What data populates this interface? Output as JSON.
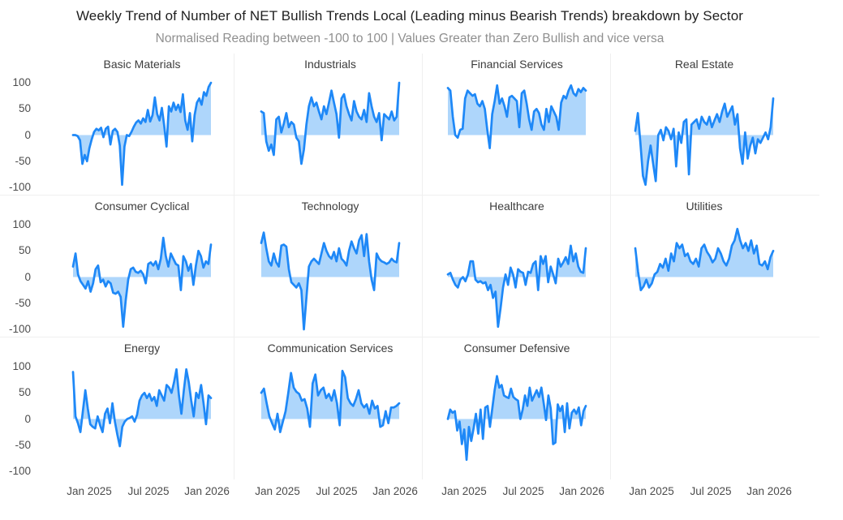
{
  "header": {
    "title": "Weekly Trend of Number of NET Bullish Trends Local (Leading minus Bearish Trends) breakdown by Sector",
    "subtitle": "Normalised Reading between -100 to 100 | Values Greater than Zero Bullish and vice versa"
  },
  "chart_data": {
    "type": "area",
    "layout_hint": "facet grid 4 columns x 3 rows, shared axes, fill to zero",
    "x_ticks": [
      "Jan 2025",
      "Jul 2025",
      "Jan 2026"
    ],
    "y_ticks": [
      100,
      50,
      0,
      -50,
      -100
    ],
    "ylim": [
      -100,
      100
    ],
    "line_color": "#1e88f7",
    "fill_color": "#aed6fb",
    "series": [
      {
        "name": "Basic Materials",
        "values": [
          0,
          0,
          -2,
          -10,
          -55,
          -38,
          -50,
          -25,
          -8,
          6,
          12,
          9,
          14,
          -4,
          12,
          16,
          -18,
          8,
          12,
          6,
          -20,
          -95,
          -22,
          0,
          -2,
          6,
          16,
          24,
          28,
          22,
          32,
          25,
          48,
          26,
          38,
          72,
          40,
          28,
          52,
          18,
          -22,
          55,
          45,
          62,
          48,
          58,
          44,
          78,
          28,
          10,
          42,
          -12,
          38,
          62,
          70,
          58,
          82,
          75,
          92,
          100
        ]
      },
      {
        "name": "Industrials",
        "values": [
          45,
          42,
          -12,
          -30,
          -18,
          -38,
          30,
          35,
          5,
          22,
          42,
          15,
          25,
          20,
          -5,
          -12,
          -55,
          -28,
          20,
          55,
          72,
          55,
          62,
          45,
          30,
          55,
          40,
          62,
          85,
          62,
          40,
          -5,
          70,
          78,
          55,
          40,
          28,
          65,
          45,
          35,
          30,
          48,
          25,
          80,
          55,
          35,
          25,
          42,
          -10,
          40,
          35,
          30,
          45,
          28,
          35,
          100
        ]
      },
      {
        "name": "Financial Services",
        "values": [
          90,
          85,
          35,
          0,
          -5,
          10,
          12,
          70,
          85,
          80,
          75,
          78,
          60,
          55,
          65,
          50,
          10,
          -25,
          40,
          65,
          95,
          60,
          70,
          55,
          35,
          72,
          75,
          70,
          65,
          15,
          80,
          85,
          60,
          30,
          10,
          45,
          50,
          42,
          20,
          10,
          50,
          25,
          55,
          45,
          35,
          10,
          62,
          75,
          70,
          85,
          95,
          80,
          75,
          88,
          82,
          90,
          85
        ]
      },
      {
        "name": "Real Estate",
        "values": [
          8,
          42,
          -15,
          -78,
          -95,
          -50,
          -20,
          -55,
          -88,
          0,
          10,
          -10,
          15,
          8,
          -8,
          12,
          -60,
          5,
          -15,
          25,
          30,
          -75,
          20,
          25,
          30,
          12,
          35,
          25,
          20,
          35,
          15,
          28,
          40,
          25,
          45,
          60,
          35,
          45,
          55,
          20,
          40,
          -25,
          -55,
          5,
          -45,
          -20,
          -5,
          -35,
          -8,
          -15,
          -5,
          5,
          -8,
          15,
          70
        ]
      },
      {
        "name": "Consumer Cyclical",
        "values": [
          20,
          45,
          5,
          -8,
          -15,
          -22,
          -8,
          -28,
          -12,
          15,
          22,
          -10,
          -5,
          -18,
          -8,
          -12,
          -30,
          -32,
          -28,
          -38,
          -95,
          -45,
          -5,
          15,
          18,
          10,
          8,
          12,
          5,
          -12,
          25,
          28,
          22,
          30,
          15,
          35,
          75,
          40,
          20,
          45,
          35,
          25,
          22,
          -25,
          40,
          30,
          12,
          25,
          -15,
          22,
          50,
          40,
          18,
          30,
          25,
          62
        ]
      },
      {
        "name": "Technology",
        "values": [
          65,
          85,
          55,
          30,
          22,
          45,
          28,
          20,
          60,
          62,
          58,
          15,
          -10,
          -15,
          -20,
          -12,
          -25,
          -100,
          -40,
          20,
          30,
          35,
          30,
          25,
          45,
          65,
          50,
          40,
          35,
          48,
          30,
          55,
          35,
          30,
          22,
          50,
          68,
          55,
          45,
          70,
          80,
          40,
          82,
          30,
          -5,
          -25,
          45,
          35,
          30,
          28,
          25,
          28,
          35,
          30,
          28,
          65
        ]
      },
      {
        "name": "Healthcare",
        "values": [
          5,
          8,
          -5,
          -15,
          -20,
          -5,
          0,
          -8,
          5,
          30,
          30,
          -5,
          -10,
          -8,
          -12,
          -10,
          -25,
          -15,
          -40,
          -28,
          -95,
          -60,
          -20,
          5,
          -15,
          18,
          5,
          -20,
          15,
          10,
          8,
          -15,
          10,
          8,
          25,
          30,
          -25,
          40,
          25,
          40,
          -10,
          20,
          5,
          -12,
          35,
          20,
          28,
          38,
          25,
          60,
          30,
          45,
          20,
          10,
          8,
          55
        ]
      },
      {
        "name": "Utilities",
        "values": [
          55,
          10,
          -25,
          -18,
          -5,
          -20,
          -12,
          5,
          10,
          25,
          18,
          35,
          12,
          45,
          30,
          65,
          55,
          62,
          40,
          45,
          30,
          25,
          35,
          20,
          55,
          62,
          48,
          40,
          28,
          35,
          55,
          45,
          30,
          22,
          35,
          60,
          70,
          92,
          70,
          55,
          65,
          50,
          70,
          45,
          60,
          25,
          22,
          30,
          15,
          38,
          50
        ]
      },
      {
        "name": "Energy",
        "values": [
          90,
          5,
          -8,
          -25,
          15,
          55,
          20,
          -10,
          -15,
          -18,
          5,
          -12,
          -25,
          10,
          20,
          -8,
          30,
          -5,
          -30,
          -52,
          -15,
          -5,
          0,
          2,
          5,
          -5,
          8,
          35,
          45,
          50,
          40,
          48,
          35,
          42,
          25,
          55,
          45,
          35,
          65,
          60,
          50,
          70,
          95,
          45,
          10,
          55,
          95,
          70,
          35,
          5,
          50,
          40,
          65,
          30,
          -10,
          45,
          40
        ]
      },
      {
        "name": "Communication Services",
        "values": [
          50,
          58,
          30,
          5,
          -8,
          -20,
          10,
          -25,
          -5,
          15,
          50,
          88,
          60,
          52,
          48,
          35,
          38,
          20,
          -15,
          68,
          85,
          45,
          55,
          60,
          40,
          48,
          35,
          55,
          30,
          -12,
          92,
          80,
          40,
          30,
          25,
          38,
          55,
          30,
          22,
          28,
          10,
          35,
          20,
          25,
          -15,
          -12,
          15,
          -8,
          22,
          22,
          25,
          30
        ]
      },
      {
        "name": "Consumer Defensive",
        "values": [
          0,
          18,
          12,
          15,
          -22,
          -5,
          -48,
          -20,
          -78,
          -15,
          -42,
          -18,
          10,
          -28,
          18,
          -38,
          22,
          25,
          -15,
          20,
          55,
          82,
          60,
          65,
          45,
          42,
          40,
          58,
          42,
          38,
          35,
          0,
          18,
          45,
          25,
          60,
          35,
          45,
          55,
          42,
          60,
          30,
          -2,
          45,
          20,
          -48,
          -45,
          28,
          15,
          25,
          -25,
          30,
          -18,
          12,
          18,
          10,
          22,
          -12,
          15,
          25
        ]
      }
    ]
  }
}
